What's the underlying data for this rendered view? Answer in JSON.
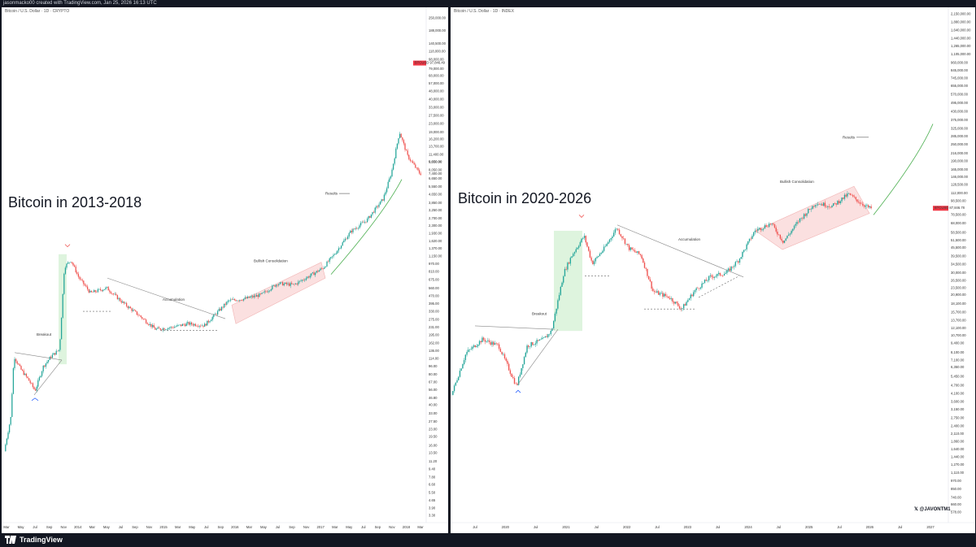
{
  "app": {
    "top_caption": "jasonmacko00 created with TradingView.com, Jan 25, 2026 16:13 UTC",
    "brand": "TradingView",
    "watermark": "@JAVONTM1",
    "colors": {
      "up": "#26a69a",
      "down": "#ef5350",
      "pattern": "#f8c8c8",
      "breakout_zone": "#c8ecc8",
      "curve": "#4caf50"
    }
  },
  "chart_data": [
    {
      "type": "line",
      "title": "Bitcoin in 2013-2018",
      "header": "Bitcoin / U.S. Dollar · 1D · CRYPTO",
      "y_scale": "log",
      "ylim": [
        2.9,
        300000
      ],
      "y_ticks": [
        "250,000.00",
        "188,000.00",
        "140,500.00",
        "118,000.00",
        "98,000.00",
        "79,000.00",
        "68,000.00",
        "57,000.00",
        "48,000.00",
        "40,000.00",
        "33,000.00",
        "27,500.00",
        "23,000.00",
        "19,000.00",
        "16,200.00",
        "13,700.00",
        "11,400.00",
        "9,650.00",
        "8,050.00",
        "6,650.00",
        "5,550.00",
        "4,650.00",
        "3,850.00",
        "3,250.00",
        "2,700.00",
        "2,300.00",
        "1,930.00",
        "1,620.00",
        "1,370.00",
        "1,150.00",
        "970.00",
        "810.00",
        "675.00",
        "560.00",
        "470.00",
        "395.00",
        "330.00",
        "275.00",
        "231.00",
        "195.00",
        "162.00",
        "136.00",
        "114.00",
        "96.00",
        "80.00",
        "67.00",
        "56.00",
        "46.80",
        "40.00",
        "33.00",
        "27.50",
        "23.00",
        "19.50",
        "16.00",
        "13.50",
        "11.20",
        "9.40",
        "7.80",
        "6.60",
        "5.50",
        "4.65",
        "3.90",
        "3.30"
      ],
      "x_ticks": [
        "Mar",
        "May",
        "Jul",
        "Sep",
        "Nov",
        "2014",
        "Mar",
        "May",
        "Jul",
        "Sep",
        "Nov",
        "2015",
        "Mar",
        "May",
        "Jul",
        "Sep",
        "2016",
        "Mar",
        "May",
        "Jul",
        "Sep",
        "Nov",
        "2017",
        "Mar",
        "May",
        "Jul",
        "Sep",
        "Nov",
        "2018",
        "Mar"
      ],
      "price_labels": [
        "BTCUSD 97,846.49",
        "9,650.00",
        "7,400.00"
      ],
      "annotations": [
        "Breakout",
        "Accumulation",
        "Bullish Consolidation",
        "Results"
      ]
    },
    {
      "type": "line",
      "title": "Bitcoin in 2020-2026",
      "header": "Bitcoin / U.S. Dollar · 1D · INDEX",
      "y_scale": "log",
      "ylim": [
        500,
        2300000
      ],
      "y_ticks": [
        "2,150,000.00",
        "1,880,000.00",
        "1,640,000.00",
        "1,440,000.00",
        "1,265,000.00",
        "1,105,000.00",
        "960,000.00",
        "845,000.00",
        "745,000.00",
        "655,000.00",
        "570,000.00",
        "495,000.00",
        "430,000.00",
        "375,000.00",
        "325,000.00",
        "285,000.00",
        "250,000.00",
        "216,000.00",
        "190,000.00",
        "165,000.00",
        "146,000.00",
        "128,500.00",
        "112,000.00",
        "98,500.00",
        "78,500.00",
        "68,000.00",
        "58,500.00",
        "51,500.00",
        "45,500.00",
        "39,500.00",
        "34,500.00",
        "30,000.00",
        "26,500.00",
        "23,500.00",
        "20,900.00",
        "18,100.00",
        "15,700.00",
        "13,700.00",
        "12,100.00",
        "10,700.00",
        "9,400.00",
        "8,100.00",
        "7,100.00",
        "6,350.00",
        "5,450.00",
        "4,700.00",
        "4,100.00",
        "3,600.00",
        "3,150.00",
        "2,750.00",
        "2,400.00",
        "2,110.00",
        "1,860.00",
        "1,640.00",
        "1,440.00",
        "1,270.00",
        "1,110.00",
        "970.00",
        "850.00",
        "740.00",
        "660.00",
        "578.00"
      ],
      "x_ticks": [
        "Jul",
        "2020",
        "Jul",
        "2021",
        "Jul",
        "2022",
        "Jul",
        "2023",
        "Jul",
        "2024",
        "Jul",
        "2025",
        "Jul",
        "2026",
        "Jul",
        "2027"
      ],
      "price_labels": [
        "BTCUSD 87,846.78"
      ],
      "annotations": [
        "Breakout",
        "Accumulation",
        "Bullish Consolidation",
        "Results"
      ]
    }
  ]
}
